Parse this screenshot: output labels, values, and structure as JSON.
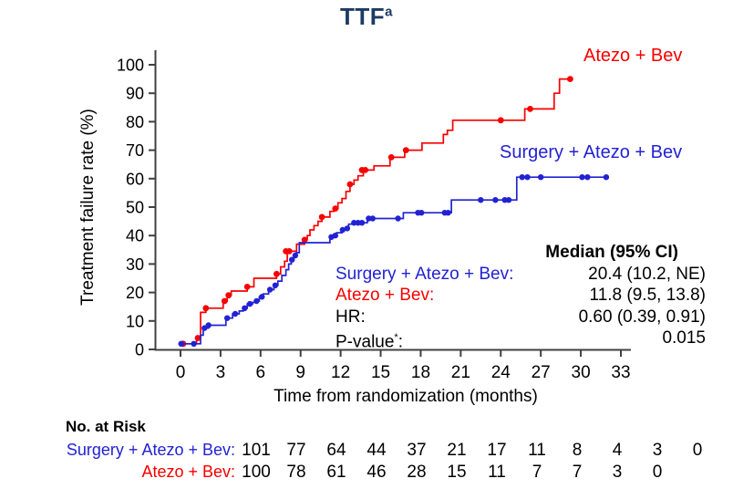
{
  "title": {
    "text": "TTF",
    "sup": "a"
  },
  "colors": {
    "red": "#f80000",
    "blue": "#2222d4",
    "navy": "#1c3a63",
    "axis": "#404040",
    "text": "#000000"
  },
  "stats": {
    "header": "Median (95% CI)",
    "rows": [
      {
        "label": "Surgery + Atezo + Bev:",
        "value": "20.4 (10.2, NE)",
        "color": "blue"
      },
      {
        "label": "Atezo + Bev:",
        "value": "11.8 (9.5, 13.8)",
        "color": "red"
      },
      {
        "label": "HR:",
        "value": "0.60 (0.39, 0.91)",
        "color": "black"
      }
    ],
    "pvalue": {
      "pre": "P-value",
      "sup": "*",
      "post": ":",
      "value": "0.015"
    }
  },
  "at_risk": {
    "header": "No. at Risk",
    "rows": [
      {
        "label": "Surgery + Atezo + Bev:",
        "color": "blue",
        "values": [
          "101",
          "77",
          "64",
          "44",
          "37",
          "21",
          "17",
          "11",
          "8",
          "4",
          "3",
          "0"
        ]
      },
      {
        "label": "Atezo + Bev:",
        "color": "red",
        "values": [
          "100",
          "78",
          "61",
          "46",
          "28",
          "15",
          "11",
          "7",
          "7",
          "3",
          "0"
        ]
      }
    ]
  },
  "chart_data": {
    "type": "line",
    "subtype": "kaplan-meier-cumulative-incidence-step",
    "title": "TTF",
    "xlabel": "Time from randomization (months)",
    "ylabel": "Treatment failure rate (%)",
    "xlim": [
      0,
      33
    ],
    "ylim": [
      0,
      100
    ],
    "x_ticks": [
      0,
      3,
      6,
      9,
      12,
      15,
      18,
      21,
      24,
      27,
      30,
      33
    ],
    "y_ticks": [
      0,
      10,
      20,
      30,
      40,
      50,
      60,
      70,
      80,
      90,
      100
    ],
    "grid": false,
    "hr": "0.60 (0.39, 0.91)",
    "p_value": "0.015",
    "series": [
      {
        "name": "Atezo + Bev",
        "color_key": "red",
        "median_95ci": "11.8 (9.5, 13.8)",
        "start": [
          0,
          2
        ],
        "steps": [
          [
            1.2,
            4
          ],
          [
            1.5,
            13
          ],
          [
            1.9,
            14.5
          ],
          [
            3.2,
            17
          ],
          [
            3.5,
            19
          ],
          [
            3.8,
            20.5
          ],
          [
            5.0,
            22
          ],
          [
            5.5,
            25
          ],
          [
            7.2,
            26.5
          ],
          [
            7.5,
            29
          ],
          [
            7.8,
            31
          ],
          [
            8.0,
            34.5
          ],
          [
            8.7,
            37
          ],
          [
            9.3,
            38.5
          ],
          [
            9.5,
            40
          ],
          [
            9.7,
            42
          ],
          [
            10.0,
            43.5
          ],
          [
            10.3,
            45
          ],
          [
            10.6,
            46.5
          ],
          [
            11.2,
            48.5
          ],
          [
            11.5,
            49.5
          ],
          [
            11.8,
            51.5
          ],
          [
            12.1,
            53
          ],
          [
            12.4,
            55.5
          ],
          [
            12.7,
            58
          ],
          [
            13.0,
            59.5
          ],
          [
            13.3,
            61
          ],
          [
            13.7,
            63
          ],
          [
            14.5,
            64.5
          ],
          [
            15.7,
            67.5
          ],
          [
            16.8,
            70
          ],
          [
            18.1,
            72.5
          ],
          [
            19.7,
            75.5
          ],
          [
            20.0,
            77
          ],
          [
            20.4,
            80.5
          ],
          [
            25.8,
            84.5
          ],
          [
            28.0,
            90
          ],
          [
            28.4,
            95
          ]
        ],
        "end_x": 29.4,
        "markers": [
          [
            0.2,
            2
          ],
          [
            1.3,
            4
          ],
          [
            1.9,
            14.5
          ],
          [
            3.3,
            17
          ],
          [
            3.6,
            19
          ],
          [
            5.0,
            22
          ],
          [
            7.2,
            26.5
          ],
          [
            7.9,
            34.5
          ],
          [
            8.15,
            34.5
          ],
          [
            9.3,
            38.5
          ],
          [
            10.6,
            46.5
          ],
          [
            11.6,
            49.5
          ],
          [
            12.7,
            58
          ],
          [
            13.6,
            63
          ],
          [
            13.85,
            63
          ],
          [
            15.8,
            67.5
          ],
          [
            16.9,
            70
          ],
          [
            24.0,
            80.5
          ],
          [
            26.2,
            84.5
          ],
          [
            29.2,
            95
          ]
        ]
      },
      {
        "name": "Surgery + Atezo + Bev",
        "color_key": "blue",
        "median_95ci": "20.4 (10.2, NE)",
        "start": [
          0,
          2
        ],
        "steps": [
          [
            1.5,
            5
          ],
          [
            1.7,
            7.5
          ],
          [
            2.1,
            8.5
          ],
          [
            3.4,
            11
          ],
          [
            3.9,
            12.5
          ],
          [
            4.4,
            13.5
          ],
          [
            4.7,
            14.5
          ],
          [
            5.0,
            16
          ],
          [
            5.4,
            16.5
          ],
          [
            5.6,
            17
          ],
          [
            5.9,
            18.5
          ],
          [
            6.2,
            19.5
          ],
          [
            6.6,
            21
          ],
          [
            7.0,
            22.5
          ],
          [
            7.3,
            24
          ],
          [
            7.6,
            26
          ],
          [
            7.9,
            28
          ],
          [
            8.1,
            30
          ],
          [
            8.3,
            31.5
          ],
          [
            8.5,
            33
          ],
          [
            8.7,
            34
          ],
          [
            8.9,
            37.5
          ],
          [
            11.2,
            39.5
          ],
          [
            11.5,
            40
          ],
          [
            11.7,
            41
          ],
          [
            12.1,
            42
          ],
          [
            12.4,
            42.5
          ],
          [
            12.6,
            44
          ],
          [
            12.9,
            44.5
          ],
          [
            14.0,
            46
          ],
          [
            16.7,
            48
          ],
          [
            20.3,
            52.5
          ],
          [
            25.2,
            60.5
          ]
        ],
        "end_x": 32.0,
        "markers": [
          [
            0.05,
            2
          ],
          [
            1.0,
            2
          ],
          [
            1.8,
            7.5
          ],
          [
            2.1,
            8.5
          ],
          [
            3.5,
            11
          ],
          [
            4.1,
            12.5
          ],
          [
            4.8,
            14.5
          ],
          [
            5.2,
            16
          ],
          [
            5.7,
            17
          ],
          [
            6.1,
            18.5
          ],
          [
            6.7,
            21
          ],
          [
            7.1,
            22.5
          ],
          [
            8.35,
            31.5
          ],
          [
            8.6,
            33
          ],
          [
            11.3,
            39.5
          ],
          [
            11.6,
            40
          ],
          [
            12.15,
            42
          ],
          [
            12.5,
            42.5
          ],
          [
            13.0,
            44.5
          ],
          [
            13.3,
            44.5
          ],
          [
            13.6,
            44.5
          ],
          [
            14.1,
            46
          ],
          [
            14.4,
            46
          ],
          [
            16.3,
            46
          ],
          [
            17.8,
            48
          ],
          [
            18.05,
            48
          ],
          [
            19.8,
            48
          ],
          [
            20.05,
            48
          ],
          [
            22.5,
            52.5
          ],
          [
            23.6,
            52.5
          ],
          [
            24.3,
            52.5
          ],
          [
            24.6,
            52.5
          ],
          [
            25.6,
            60.5
          ],
          [
            26.0,
            60.5
          ],
          [
            27.0,
            60.5
          ],
          [
            30.1,
            60.5
          ],
          [
            30.5,
            60.5
          ],
          [
            31.9,
            60.5
          ]
        ]
      }
    ]
  }
}
